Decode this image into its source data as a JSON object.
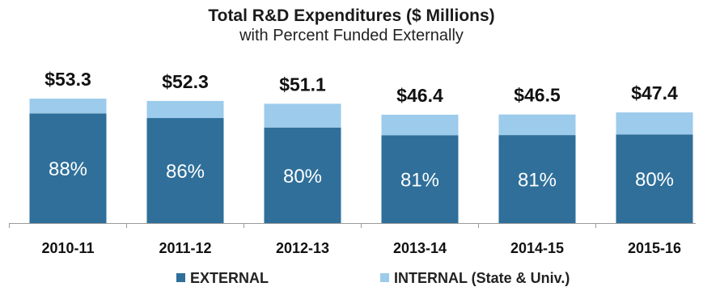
{
  "chart_data": {
    "type": "bar",
    "stacked": true,
    "title": "Total R&D Expenditures ($ Millions)",
    "subtitle": "with Percent Funded Externally",
    "categories": [
      "2010-11",
      "2011-12",
      "2012-13",
      "2013-14",
      "2014-15",
      "2015-16"
    ],
    "totals": [
      53.3,
      52.3,
      51.1,
      46.4,
      46.5,
      47.4
    ],
    "total_labels": [
      "$53.3",
      "$52.3",
      "$51.1",
      "$46.4",
      "$46.5",
      "$47.4"
    ],
    "external_percent": [
      88,
      86,
      80,
      81,
      81,
      80
    ],
    "external_percent_labels": [
      "88%",
      "86%",
      "80%",
      "81%",
      "81%",
      "80%"
    ],
    "series": [
      {
        "name": "EXTERNAL",
        "color": "#2f6f9a"
      },
      {
        "name": "INTERNAL (State & Univ.)",
        "color": "#9ccbeb"
      }
    ],
    "ylim": [
      0,
      60
    ],
    "grid": false,
    "legend_position": "bottom"
  }
}
